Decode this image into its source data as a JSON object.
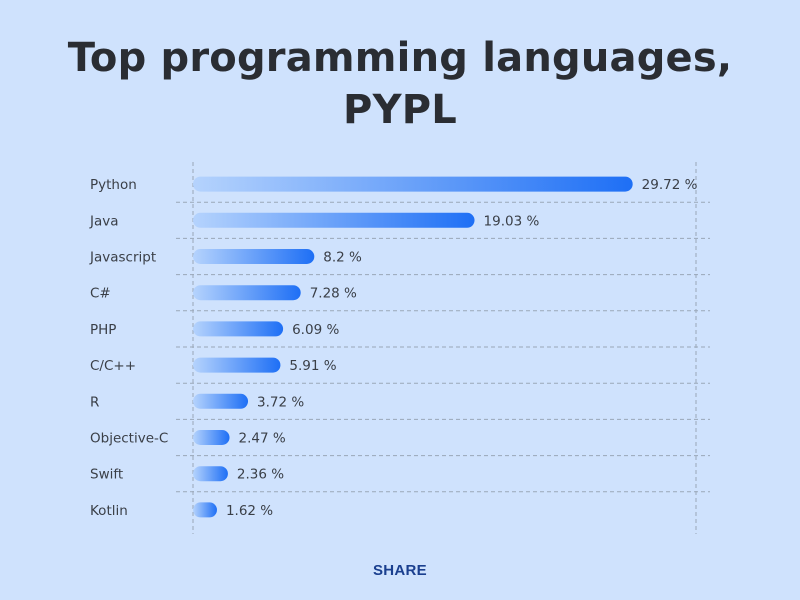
{
  "title_line1": "Top programming languages,",
  "title_line2": "PYPL",
  "share_label": "SHARE",
  "colors": {
    "background": "#cfe2fd",
    "bar_start": "#b5d3fd",
    "bar_end": "#1e6ff5",
    "grid": "#9aa7b8",
    "title": "#2a2d33",
    "share": "#1a3f8f"
  },
  "chart_data": {
    "type": "bar",
    "orientation": "horizontal",
    "title": "Top programming languages, PYPL",
    "xlabel": "",
    "ylabel": "",
    "xlim": [
      0,
      34
    ],
    "grid": true,
    "legend": "none",
    "categories": [
      "Python",
      "Java",
      "Javascript",
      "C#",
      "PHP",
      "C/C++",
      "R",
      "Objective-C",
      "Swift",
      "Kotlin"
    ],
    "values": [
      29.72,
      19.03,
      8.2,
      7.28,
      6.09,
      5.91,
      3.72,
      2.47,
      2.36,
      1.62
    ],
    "value_labels": [
      "29.72 %",
      "19.03 %",
      "8.2 %",
      "7.28 %",
      "6.09 %",
      "5.91 %",
      "3.72 %",
      "2.47 %",
      "2.36 %",
      "1.62 %"
    ]
  }
}
